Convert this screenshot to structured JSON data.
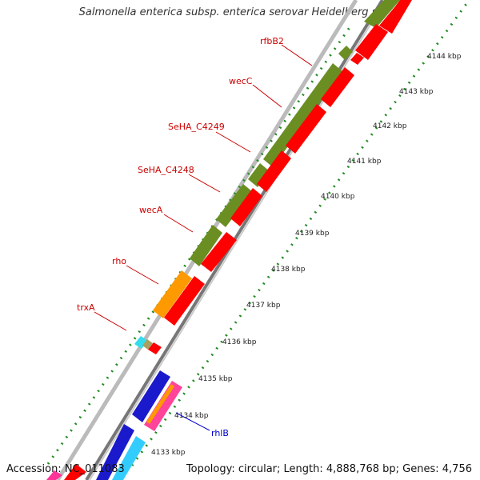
{
  "title": "Salmonella enterica subsp. enterica serovar Heidelberg str. ...",
  "accession": "Accession: NC_011083",
  "topology": "Topology: circular; Length: 4,888,768 bp; Genes: 4,756",
  "ticks": [
    {
      "label": "4133 kbp",
      "kbp": 4133
    },
    {
      "label": "4134 kbp",
      "kbp": 4134
    },
    {
      "label": "4135 kbp",
      "kbp": 4135
    },
    {
      "label": "4136 kbp",
      "kbp": 4136
    },
    {
      "label": "4137 kbp",
      "kbp": 4137
    },
    {
      "label": "4138 kbp",
      "kbp": 4138
    },
    {
      "label": "4139 kbp",
      "kbp": 4139
    },
    {
      "label": "4140 kbp",
      "kbp": 4140
    },
    {
      "label": "4141 kbp",
      "kbp": 4141
    },
    {
      "label": "4142 kbp",
      "kbp": 4142
    },
    {
      "label": "4143 kbp",
      "kbp": 4143
    },
    {
      "label": "4144 kbp",
      "kbp": 4144
    }
  ],
  "gene_labels": [
    {
      "name": "rfbB2",
      "color": "#cc0000"
    },
    {
      "name": "wecC",
      "color": "#cc0000"
    },
    {
      "name": "SeHA_C4249",
      "color": "#cc0000"
    },
    {
      "name": "SeHA_C4248",
      "color": "#cc0000"
    },
    {
      "name": "wecA",
      "color": "#cc0000"
    },
    {
      "name": "rho",
      "color": "#cc0000"
    },
    {
      "name": "trxA",
      "color": "#cc0000"
    },
    {
      "name": "rhlB",
      "color": "#0000cc"
    }
  ],
  "colors": {
    "gene_green": "#6b8e23",
    "gene_red": "#ff0000",
    "gene_orange": "#ff9900",
    "gene_blue": "#1a1acc",
    "gene_cyan": "#33ccff",
    "gene_pink": "#ff3399",
    "backbone": "#888888",
    "gc_dots": "#228b22"
  }
}
